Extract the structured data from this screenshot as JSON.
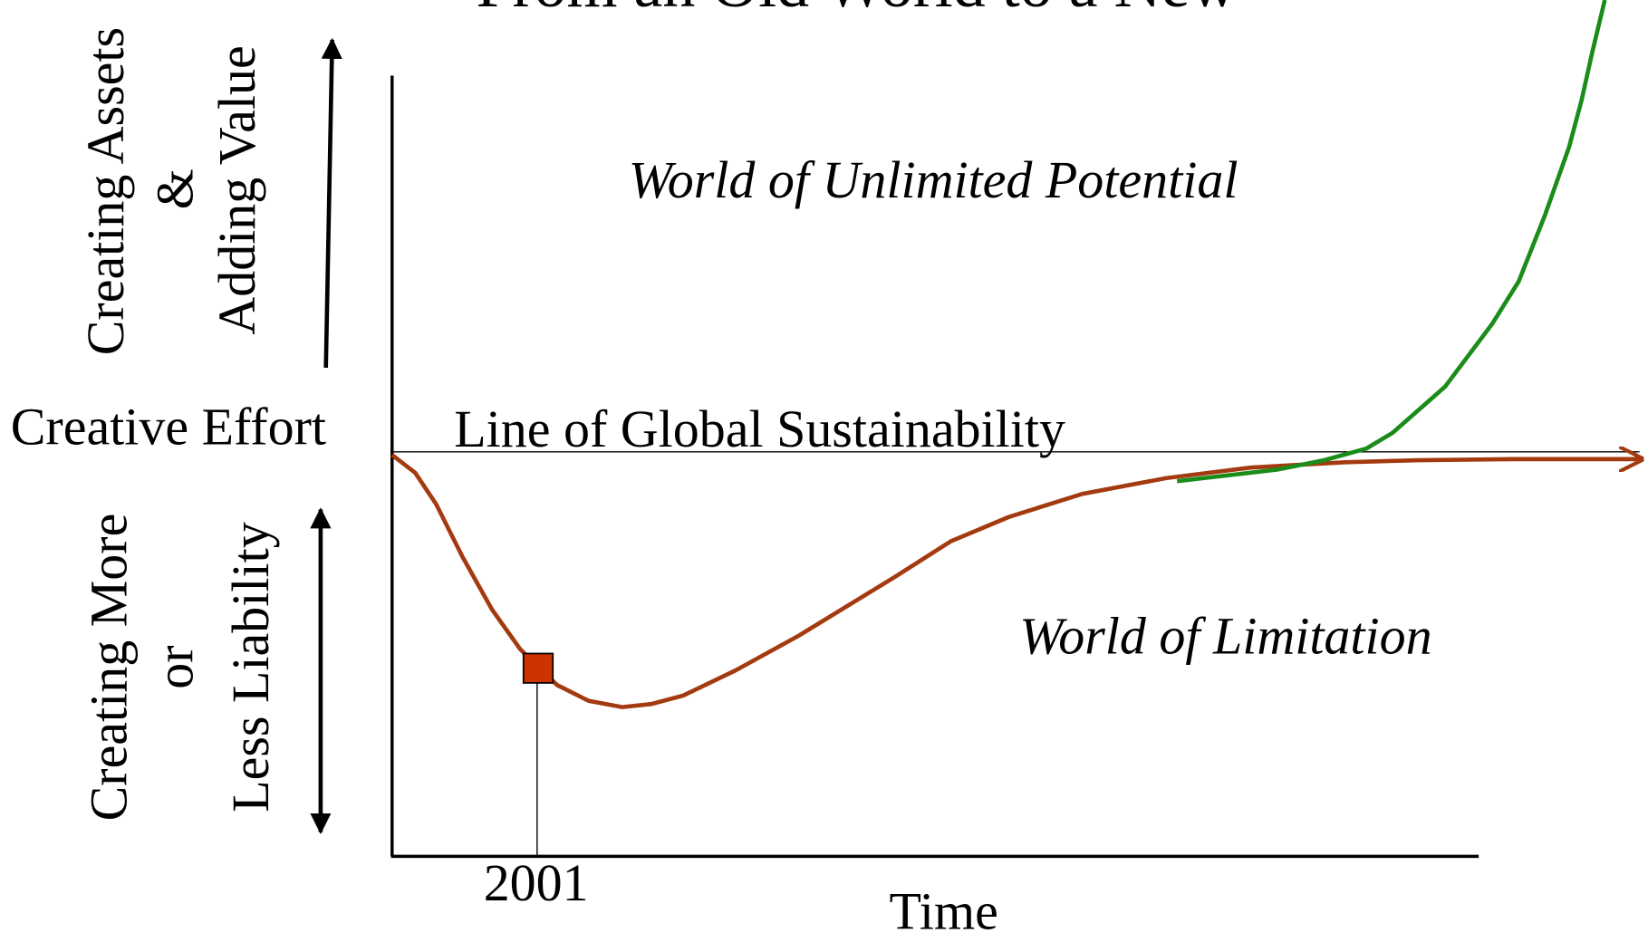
{
  "title": "From an Old World to a New",
  "y_axis": {
    "upper": {
      "line1": "Creating Assets",
      "line2": "&",
      "line3": "Adding Value"
    },
    "middle": "Creative Effort",
    "lower": {
      "line1": "Creating More",
      "line2": "or",
      "line3": "Less Liability"
    }
  },
  "sustainability_line": "Line of Global Sustainability",
  "regions": {
    "upper": "World of Unlimited Potential",
    "lower": "World of Limitation"
  },
  "marker": "2001",
  "x_axis": "Time"
}
